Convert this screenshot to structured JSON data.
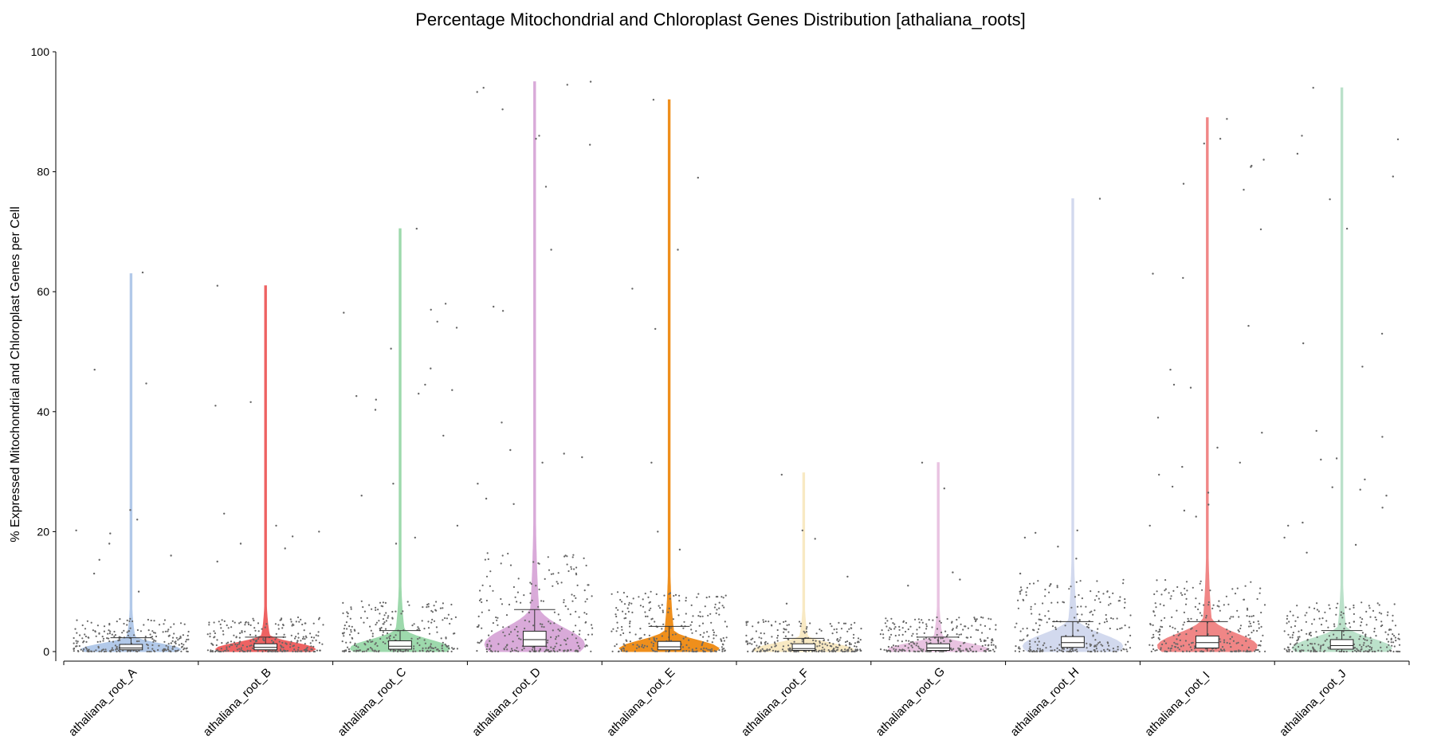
{
  "chart_data": {
    "type": "violin",
    "title": "Percentage Mitochondrial and Chloroplast Genes Distribution [athaliana_roots]",
    "xlabel": "",
    "ylabel": "% Expressed Mitochondrial and Chloroplast Genes per Cell",
    "ylim": [
      0,
      100
    ],
    "yticks": [
      0,
      20,
      40,
      60,
      80,
      100
    ],
    "y_tick_labels": [
      "0",
      "20",
      "40",
      "60",
      "80",
      "100"
    ],
    "grid": false,
    "legend": "none",
    "point_color": "#666666",
    "categories": [
      "athaliana_root_A",
      "athaliana_root_B",
      "athaliana_root_C",
      "athaliana_root_D",
      "athaliana_root_E",
      "athaliana_root_F",
      "athaliana_root_G",
      "athaliana_root_H",
      "athaliana_root_I",
      "athaliana_root_J"
    ],
    "series": [
      {
        "name": "athaliana_root_A",
        "color": "#aec7e8",
        "max": 63,
        "width": 0.55,
        "box": {
          "whisker_low": 0,
          "q1": 0.3,
          "median": 0.6,
          "q3": 1.2,
          "whisker_high": 2.3
        },
        "outliers": [
          63.2,
          47,
          44.7,
          23.6,
          22,
          20.2,
          19.7,
          18,
          16,
          15.3,
          13,
          10
        ]
      },
      {
        "name": "athaliana_root_B",
        "color": "#ee5a5a",
        "max": 61,
        "width": 0.55,
        "box": {
          "whisker_low": 0,
          "q1": 0.3,
          "median": 0.7,
          "q3": 1.3,
          "whisker_high": 2.4
        },
        "outliers": [
          61,
          41.6,
          41,
          23,
          21,
          20,
          19.2,
          18,
          17.2,
          15
        ]
      },
      {
        "name": "athaliana_root_C",
        "color": "#98d8a8",
        "max": 70.5,
        "width": 0.55,
        "box": {
          "whisker_low": 0,
          "q1": 0.4,
          "median": 0.9,
          "q3": 1.8,
          "whisker_high": 3.5
        },
        "outliers": [
          70.5,
          58,
          57,
          56.5,
          55,
          54,
          50.5,
          47.2,
          44.5,
          43.6,
          43,
          42.6,
          42,
          40.3,
          36,
          28,
          26,
          21,
          19,
          18
        ]
      },
      {
        "name": "athaliana_root_D",
        "color": "#d8a6d8",
        "max": 95,
        "width": 0.55,
        "box": {
          "whisker_low": 0,
          "q1": 0.9,
          "median": 2,
          "q3": 3.4,
          "whisker_high": 7
        },
        "outliers": [
          95,
          94.5,
          94,
          93.3,
          90.4,
          86,
          85.5,
          84.5,
          77.5,
          67,
          57.5,
          56.8,
          38.2,
          33.6,
          33,
          32.4,
          31.5,
          28,
          25.5,
          24.6
        ]
      },
      {
        "name": "athaliana_root_E",
        "color": "#ef8a10",
        "max": 92,
        "width": 0.55,
        "box": {
          "whisker_low": 0,
          "q1": 0.3,
          "median": 0.8,
          "q3": 1.7,
          "whisker_high": 4.2
        },
        "outliers": [
          92,
          79,
          67,
          60.5,
          53.8,
          31.5,
          20,
          17
        ]
      },
      {
        "name": "athaliana_root_F",
        "color": "#f8e8c0",
        "max": 29.8,
        "width": 0.55,
        "box": {
          "whisker_low": 0,
          "q1": 0.2,
          "median": 0.5,
          "q3": 1.3,
          "whisker_high": 2.2
        },
        "outliers": [
          29.5,
          20.2,
          18.8,
          12.5,
          8
        ]
      },
      {
        "name": "athaliana_root_G",
        "color": "#e8c0e0",
        "max": 31.5,
        "width": 0.55,
        "box": {
          "whisker_low": 0,
          "q1": 0.2,
          "median": 0.6,
          "q3": 1.3,
          "whisker_high": 2.4
        },
        "outliers": [
          31.5,
          27.2,
          13.2,
          12,
          11
        ]
      },
      {
        "name": "athaliana_root_H",
        "color": "#d0d8ee",
        "max": 75.5,
        "width": 0.55,
        "box": {
          "whisker_low": 0,
          "q1": 0.7,
          "median": 1.5,
          "q3": 2.5,
          "whisker_high": 5
        },
        "outliers": [
          75.5,
          20.2,
          19.8,
          19,
          17.5,
          15.5,
          13
        ]
      },
      {
        "name": "athaliana_root_I",
        "color": "#f08080",
        "max": 89,
        "width": 0.55,
        "box": {
          "whisker_low": 0,
          "q1": 0.6,
          "median": 1.5,
          "q3": 2.6,
          "whisker_high": 5
        },
        "outliers": [
          88.8,
          85.5,
          84.7,
          82,
          81,
          80.8,
          78,
          77,
          70.4,
          63,
          62.3,
          54.3,
          47,
          44.5,
          44,
          39,
          36.5,
          34,
          31.5,
          30.8,
          29.5,
          27.5,
          26.5,
          24.5,
          23.5,
          22.5,
          21
        ]
      },
      {
        "name": "athaliana_root_J",
        "color": "#b8e0c8",
        "max": 94,
        "width": 0.55,
        "box": {
          "whisker_low": 0,
          "q1": 0.4,
          "median": 1,
          "q3": 2,
          "whisker_high": 3.5
        },
        "outliers": [
          94,
          86,
          85.4,
          83,
          79.2,
          75.4,
          70.5,
          53,
          51.4,
          47.5,
          36.8,
          35.8,
          32.2,
          32,
          28.7,
          27.4,
          27,
          26,
          24,
          21.5,
          21,
          19,
          17.8,
          16.5
        ]
      }
    ]
  }
}
